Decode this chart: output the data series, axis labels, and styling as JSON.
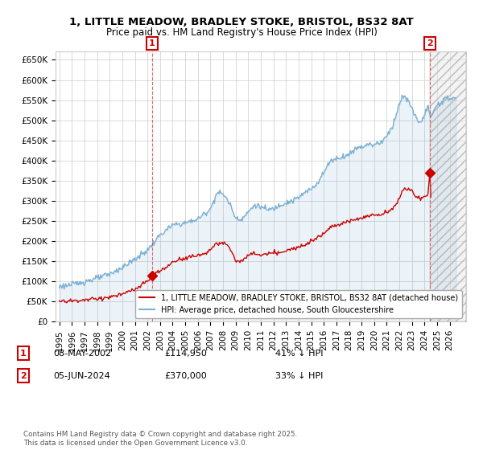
{
  "title": "1, LITTLE MEADOW, BRADLEY STOKE, BRISTOL, BS32 8AT",
  "subtitle": "Price paid vs. HM Land Registry's House Price Index (HPI)",
  "ylim": [
    0,
    670000
  ],
  "yticks": [
    0,
    50000,
    100000,
    150000,
    200000,
    250000,
    300000,
    350000,
    400000,
    450000,
    500000,
    550000,
    600000,
    650000
  ],
  "ytick_labels": [
    "£0",
    "£50K",
    "£100K",
    "£150K",
    "£200K",
    "£250K",
    "£300K",
    "£350K",
    "£400K",
    "£450K",
    "£500K",
    "£550K",
    "£600K",
    "£650K"
  ],
  "background_color": "#ffffff",
  "grid_color": "#cccccc",
  "hpi_line_color": "#7bafd4",
  "hpi_fill_color": "#ddeeff",
  "price_line_color": "#cc0000",
  "sale1_x": 2002.37,
  "sale1_y": 114950,
  "sale2_x": 2024.43,
  "sale2_y": 370000,
  "vline_color": "#dd4444",
  "annotation_info": [
    {
      "num": "1",
      "date": "08-MAY-2002",
      "price": "£114,950",
      "hpi": "41% ↓ HPI"
    },
    {
      "num": "2",
      "date": "05-JUN-2024",
      "price": "£370,000",
      "hpi": "33% ↓ HPI"
    }
  ],
  "legend_entries": [
    "1, LITTLE MEADOW, BRADLEY STOKE, BRISTOL, BS32 8AT (detached house)",
    "HPI: Average price, detached house, South Gloucestershire"
  ],
  "footnote": "Contains HM Land Registry data © Crown copyright and database right 2025.\nThis data is licensed under the Open Government Licence v3.0.",
  "title_fontsize": 9.5,
  "subtitle_fontsize": 8.5,
  "tick_fontsize": 7.5,
  "legend_fontsize": 7,
  "xlim_left": 1994.7,
  "xlim_right": 2027.3,
  "hatch_start": 2024.43,
  "hatch_end": 2027.3
}
